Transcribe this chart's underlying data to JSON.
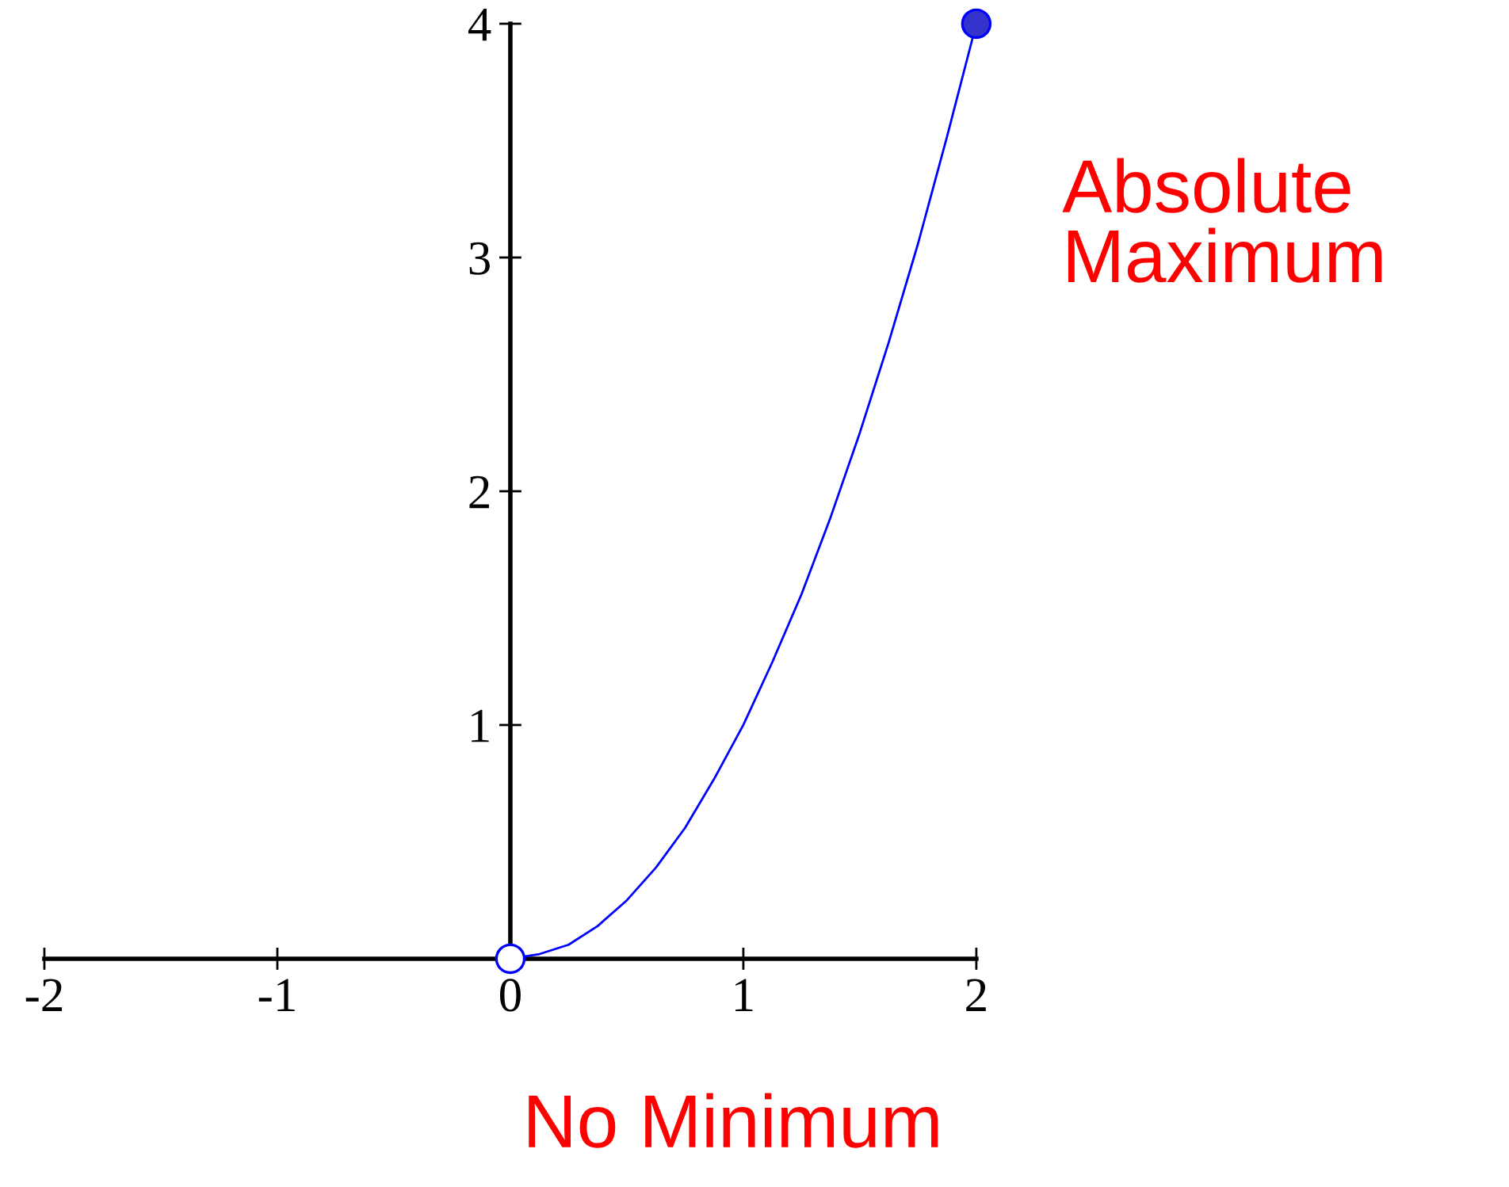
{
  "chart_data": {
    "type": "line",
    "xlim": [
      -2,
      2
    ],
    "ylim": [
      0,
      4
    ],
    "xticks": [
      -2,
      -1,
      0,
      1,
      2
    ],
    "yticks": [
      {
        "value": 0,
        "label": null
      },
      1,
      2,
      3,
      4
    ],
    "series": [
      {
        "color": "#0000ff",
        "marker": "none",
        "x": [
          0,
          0.125,
          0.25,
          0.375,
          0.5,
          0.625,
          0.75,
          0.875,
          1,
          1.125,
          1.25,
          1.375,
          1.5,
          1.625,
          1.75,
          1.875,
          2
        ],
        "values": [
          0,
          0.02,
          0.06,
          0.14,
          0.25,
          0.39,
          0.56,
          0.77,
          1,
          1.27,
          1.56,
          1.89,
          2.25,
          2.64,
          3.06,
          3.52,
          4
        ]
      },
      {
        "type": "scatter",
        "color": "#3333cc",
        "marker": "circle",
        "x": [
          2
        ],
        "values": [
          4
        ]
      },
      {
        "type": "scatter",
        "color": "#ffffff",
        "marker": "circle",
        "x": [
          0
        ],
        "values": [
          0
        ]
      }
    ],
    "annotations": [
      {
        "text": "Absolute\nMaximum",
        "x": 2,
        "y": 4
      },
      {
        "text": "No Minimum",
        "x": 0,
        "y": 0
      }
    ]
  }
}
